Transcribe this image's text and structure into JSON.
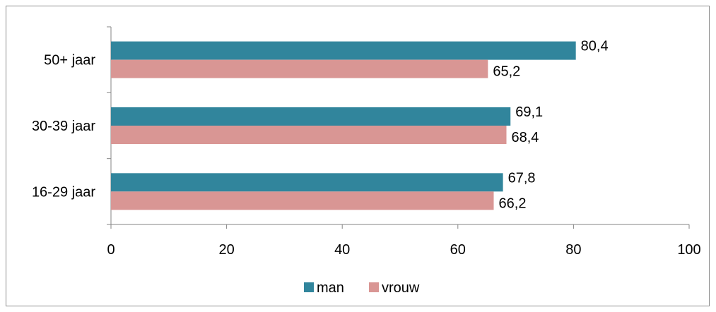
{
  "chart_data": {
    "type": "bar",
    "orientation": "horizontal",
    "title": "",
    "xlabel": "",
    "ylabel": "",
    "categories": [
      "16-29 jaar",
      "30-39 jaar",
      "50+ jaar"
    ],
    "series": [
      {
        "name": "man",
        "values": [
          67.8,
          69.1,
          80.4
        ],
        "labels": [
          "67,8",
          "69,1",
          "80,4"
        ],
        "color": "#31859c"
      },
      {
        "name": "vrouw",
        "values": [
          66.2,
          68.4,
          65.2
        ],
        "labels": [
          "66,2",
          "68,4",
          "65,2"
        ],
        "color": "#d99694"
      }
    ],
    "xlim": [
      0,
      100
    ],
    "xticks": [
      "0",
      "20",
      "40",
      "60",
      "80",
      "100"
    ],
    "grid": false,
    "legend_position": "bottom"
  }
}
